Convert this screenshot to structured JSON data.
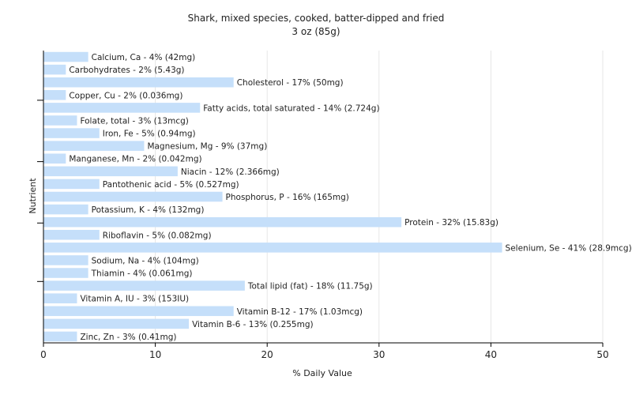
{
  "chart_data": {
    "type": "bar",
    "orientation": "horizontal",
    "title": "Shark, mixed species, cooked, batter-dipped and fried",
    "subtitle": "3 oz (85g)",
    "xlabel": "% Daily Value",
    "ylabel": "Nutrient",
    "xlim": [
      0,
      50
    ],
    "xticks": [
      0,
      10,
      20,
      30,
      40,
      50
    ],
    "grid": "vertical",
    "legend": "none",
    "categories": [
      "Calcium, Ca",
      "Carbohydrates",
      "Cholesterol",
      "Copper, Cu",
      "Fatty acids, total saturated",
      "Folate, total",
      "Iron, Fe",
      "Magnesium, Mg",
      "Manganese, Mn",
      "Niacin",
      "Pantothenic acid",
      "Phosphorus, P",
      "Potassium, K",
      "Protein",
      "Riboflavin",
      "Selenium, Se",
      "Sodium, Na",
      "Thiamin",
      "Total lipid (fat)",
      "Vitamin A, IU",
      "Vitamin B-12",
      "Vitamin B-6",
      "Zinc, Zn"
    ],
    "values": [
      4,
      2,
      17,
      2,
      14,
      3,
      5,
      9,
      2,
      12,
      5,
      16,
      4,
      32,
      5,
      41,
      4,
      4,
      18,
      3,
      17,
      13,
      3
    ],
    "labels": [
      "Calcium, Ca - 4% (42mg)",
      "Carbohydrates - 2% (5.43g)",
      "Cholesterol - 17% (50mg)",
      "Copper, Cu - 2% (0.036mg)",
      "Fatty acids, total saturated - 14% (2.724g)",
      "Folate, total - 3% (13mcg)",
      "Iron, Fe - 5% (0.94mg)",
      "Magnesium, Mg - 9% (37mg)",
      "Manganese, Mn - 2% (0.042mg)",
      "Niacin - 12% (2.366mg)",
      "Pantothenic acid - 5% (0.527mg)",
      "Phosphorus, P - 16% (165mg)",
      "Potassium, K - 4% (132mg)",
      "Protein - 32% (15.83g)",
      "Riboflavin - 5% (0.082mg)",
      "Selenium, Se - 41% (28.9mcg)",
      "Sodium, Na - 4% (104mg)",
      "Thiamin - 4% (0.061mg)",
      "Total lipid (fat) - 18% (11.75g)",
      "Vitamin A, IU - 3% (153IU)",
      "Vitamin B-12 - 17% (1.03mcg)",
      "Vitamin B-6 - 13% (0.255mg)",
      "Zinc, Zn - 3% (0.41mg)"
    ],
    "colors": {
      "bar": "#c5dffa",
      "grid": "#e6e6e6",
      "axis": "#000000",
      "text": "#222222",
      "plot_background": "#ffffff"
    }
  }
}
